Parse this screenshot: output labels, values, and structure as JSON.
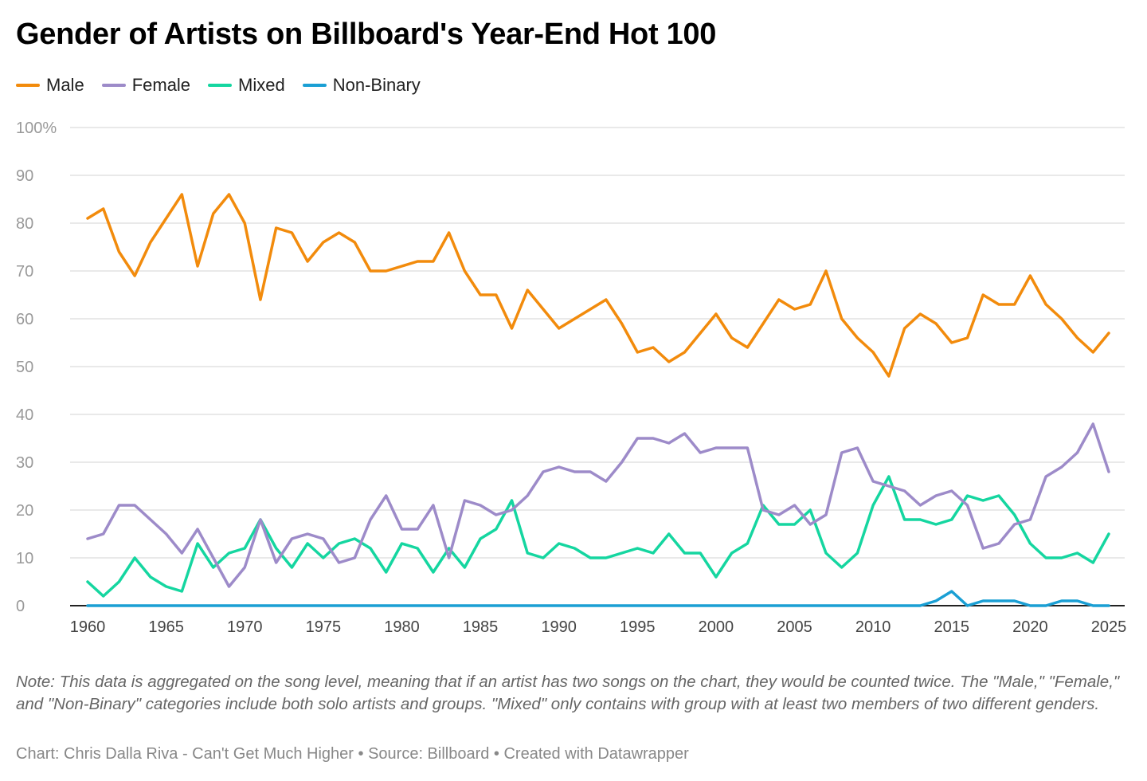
{
  "chart_data": {
    "type": "line",
    "title": "Gender of Artists on Billboard's Year-End Hot 100",
    "x": [
      1960,
      1961,
      1962,
      1963,
      1964,
      1965,
      1966,
      1967,
      1968,
      1969,
      1970,
      1971,
      1972,
      1973,
      1974,
      1975,
      1976,
      1977,
      1978,
      1979,
      1980,
      1981,
      1982,
      1983,
      1984,
      1985,
      1986,
      1987,
      1988,
      1989,
      1990,
      1991,
      1992,
      1993,
      1994,
      1995,
      1996,
      1997,
      1998,
      1999,
      2000,
      2001,
      2002,
      2003,
      2004,
      2005,
      2006,
      2007,
      2008,
      2009,
      2010,
      2011,
      2012,
      2013,
      2014,
      2015,
      2016,
      2017,
      2018,
      2019,
      2020,
      2021,
      2022,
      2023,
      2024,
      2025
    ],
    "series": [
      {
        "name": "Male",
        "color": "#f28b0c",
        "values": [
          81,
          83,
          74,
          69,
          76,
          81,
          86,
          71,
          82,
          86,
          80,
          64,
          79,
          78,
          72,
          76,
          78,
          76,
          70,
          70,
          71,
          72,
          72,
          78,
          70,
          65,
          65,
          58,
          66,
          62,
          58,
          60,
          62,
          64,
          59,
          53,
          54,
          51,
          53,
          57,
          61,
          56,
          54,
          59,
          64,
          62,
          63,
          70,
          60,
          56,
          53,
          48,
          58,
          61,
          59,
          55,
          56,
          65,
          63,
          63,
          69,
          63,
          60,
          56,
          53,
          57
        ]
      },
      {
        "name": "Female",
        "color": "#9d8bc9",
        "values": [
          14,
          15,
          21,
          21,
          18,
          15,
          11,
          16,
          10,
          4,
          8,
          18,
          9,
          14,
          15,
          14,
          9,
          10,
          18,
          23,
          16,
          16,
          21,
          10,
          22,
          21,
          19,
          20,
          23,
          28,
          29,
          28,
          28,
          26,
          30,
          35,
          35,
          34,
          36,
          32,
          33,
          33,
          33,
          20,
          19,
          21,
          17,
          19,
          32,
          33,
          26,
          25,
          24,
          21,
          23,
          24,
          21,
          12,
          13,
          17,
          18,
          27,
          29,
          32,
          38,
          28
        ]
      },
      {
        "name": "Mixed",
        "color": "#15d6a0",
        "values": [
          5,
          2,
          5,
          10,
          6,
          4,
          3,
          13,
          8,
          11,
          12,
          18,
          12,
          8,
          13,
          10,
          13,
          14,
          12,
          7,
          13,
          12,
          7,
          12,
          8,
          14,
          16,
          22,
          11,
          10,
          13,
          12,
          10,
          10,
          11,
          12,
          11,
          15,
          11,
          11,
          6,
          11,
          13,
          21,
          17,
          17,
          20,
          11,
          8,
          11,
          21,
          27,
          18,
          18,
          17,
          18,
          23,
          22,
          23,
          19,
          13,
          10,
          10,
          11,
          9,
          15
        ]
      },
      {
        "name": "Non-Binary",
        "color": "#1a9fd4",
        "values": [
          0,
          0,
          0,
          0,
          0,
          0,
          0,
          0,
          0,
          0,
          0,
          0,
          0,
          0,
          0,
          0,
          0,
          0,
          0,
          0,
          0,
          0,
          0,
          0,
          0,
          0,
          0,
          0,
          0,
          0,
          0,
          0,
          0,
          0,
          0,
          0,
          0,
          0,
          0,
          0,
          0,
          0,
          0,
          0,
          0,
          0,
          0,
          0,
          0,
          0,
          0,
          0,
          0,
          0,
          1,
          3,
          0,
          1,
          1,
          1,
          0,
          0,
          1,
          1,
          0,
          0
        ]
      }
    ],
    "ylim": [
      0,
      100
    ],
    "yticks": [
      0,
      10,
      20,
      30,
      40,
      50,
      60,
      70,
      80,
      90,
      100
    ],
    "ytick_labels": [
      "0",
      "10",
      "20",
      "30",
      "40",
      "50",
      "60",
      "70",
      "80",
      "90",
      "100%"
    ],
    "xticks": [
      1960,
      1965,
      1970,
      1975,
      1980,
      1985,
      1990,
      1995,
      2000,
      2005,
      2010,
      2015,
      2020,
      2025
    ],
    "grid": true,
    "legend_placement": "top-left"
  },
  "note": "Note: This data is aggregated on the song level, meaning that if an artist has two songs on the chart, they would be counted twice. The \"Male,\" \"Female,\" and \"Non-Binary\" categories include both solo artists and groups. \"Mixed\" only contains with group with at least two members of two different genders.",
  "credit": "Chart: Chris Dalla Riva - Can't Get Much Higher • Source: Billboard • Created with Datawrapper"
}
